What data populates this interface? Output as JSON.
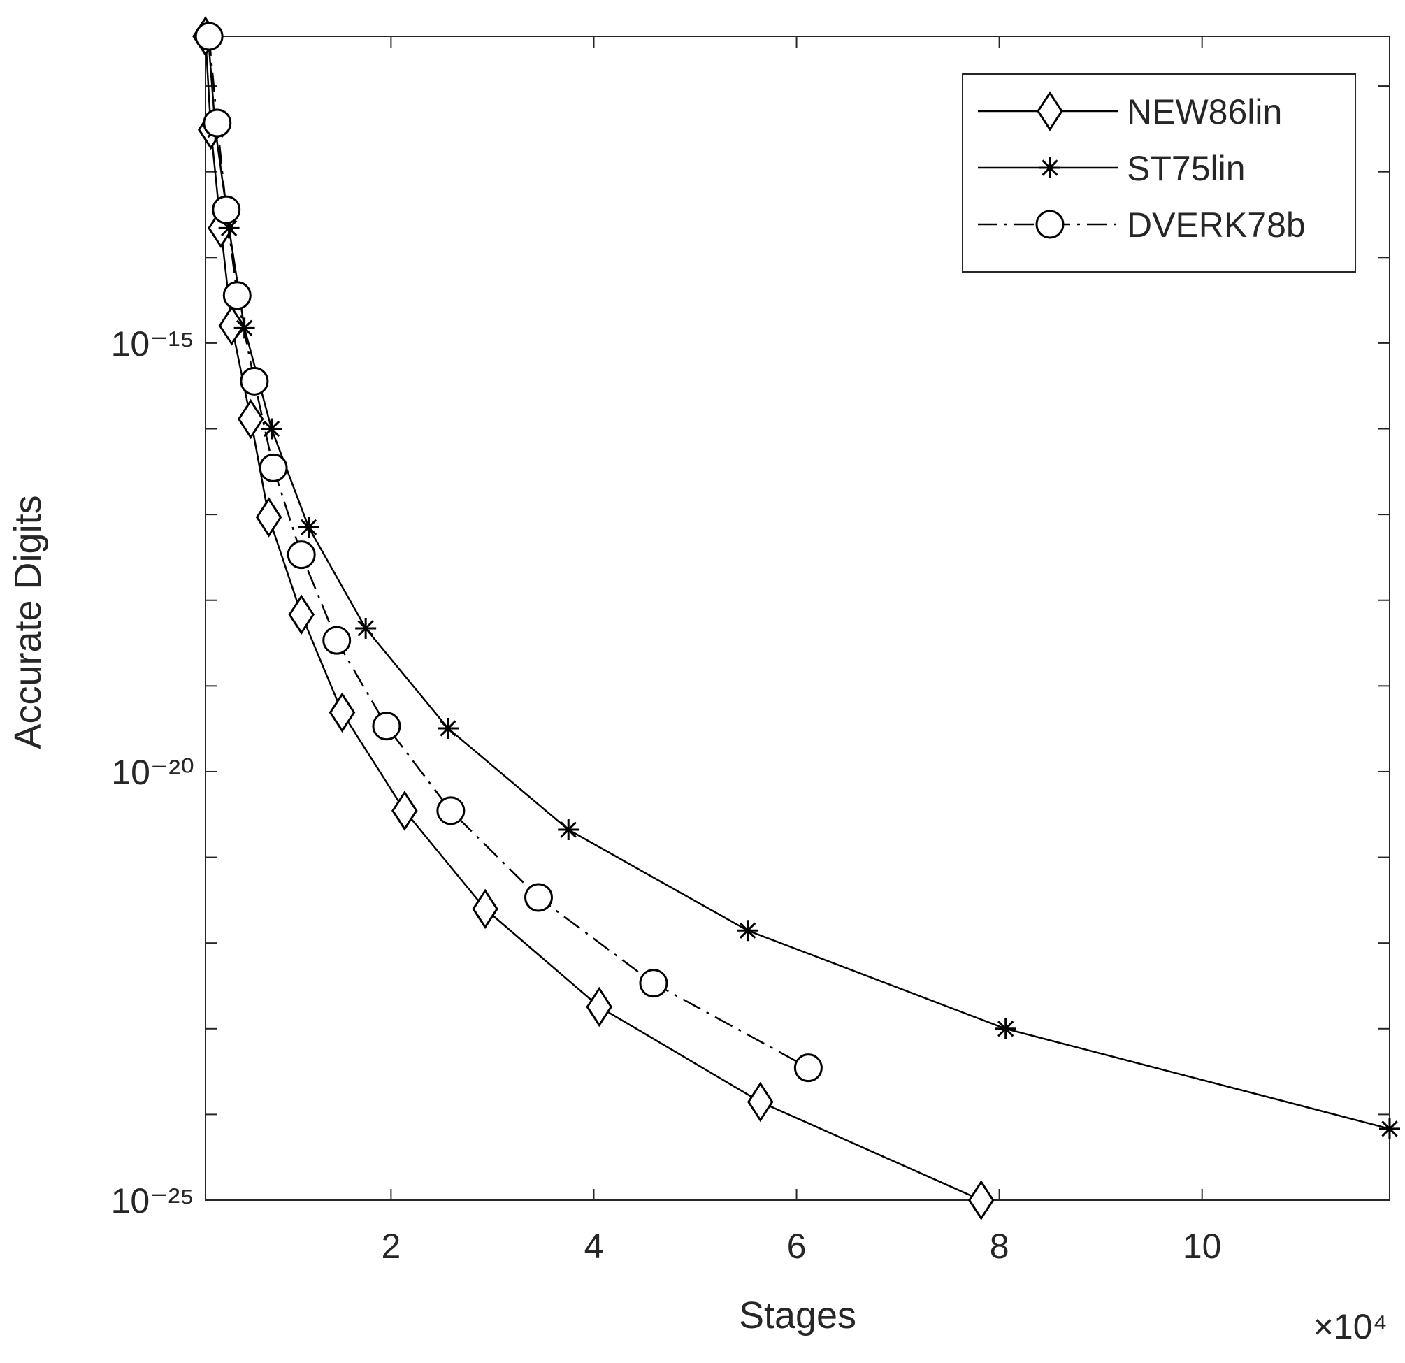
{
  "chart_data": {
    "type": "line",
    "xlabel": "Stages",
    "ylabel": "Accurate Digits",
    "x_multiplier": "×10⁴",
    "xlim": [
      1700,
      118500
    ],
    "ylim": [
      1e-25,
      3.8e-12
    ],
    "ylog": true,
    "xticks": [
      {
        "value": 20000,
        "label": "2"
      },
      {
        "value": 40000,
        "label": "4"
      },
      {
        "value": 60000,
        "label": "6"
      },
      {
        "value": 80000,
        "label": "8"
      },
      {
        "value": 100000,
        "label": "10"
      }
    ],
    "yticks": [
      {
        "value": 1e-15,
        "label": "10⁻¹⁵"
      },
      {
        "value": 1e-20,
        "label": "10⁻²⁰"
      },
      {
        "value": 1e-25,
        "label": "10⁻²⁵"
      }
    ],
    "y_decade_ticks": [
      1e-12,
      1e-13,
      1e-14,
      1e-16,
      1e-17,
      1e-18,
      1e-19,
      1e-21,
      1e-22,
      1e-23,
      1e-24
    ],
    "legend": "top-right",
    "series": [
      {
        "name": "NEW86lin",
        "color": "#000000",
        "marker": "diamond",
        "line": "solid",
        "x": [
          1696,
          2232,
          3214,
          4286,
          6161,
          7946,
          11161,
          15179,
          21339,
          29286,
          40536,
          56429,
          78214
        ],
        "values": [
          3.8e-12,
          3.1e-13,
          2.2e-14,
          1.6e-15,
          1.3e-16,
          9.3e-18,
          6.8e-19,
          4.9e-20,
          3.5e-21,
          2.5e-22,
          1.8e-23,
          1.4e-24,
          1e-25
        ]
      },
      {
        "name": "ST75lin",
        "color": "#000000",
        "marker": "star",
        "line": "solid",
        "x": [
          1964,
          2679,
          4018,
          5536,
          8214,
          11875,
          17500,
          25625,
          37500,
          55179,
          80625,
          118500
        ],
        "values": [
          3.8e-12,
          3.1e-13,
          2.2e-14,
          1.5e-15,
          1e-16,
          7.1e-18,
          4.7e-19,
          3.2e-20,
          2.1e-21,
          1.4e-22,
          1e-23,
          6.8e-25
        ]
      },
      {
        "name": "DVERK78b",
        "color": "#000000",
        "marker": "circle",
        "line": "dashdot",
        "x": [
          2054,
          2857,
          3750,
          4821,
          6518,
          8393,
          11161,
          14643,
          19554,
          25893,
          34554,
          45893,
          61161
        ],
        "values": [
          3.8e-12,
          3.7e-13,
          3.6e-14,
          3.6e-15,
          3.6e-16,
          3.5e-17,
          3.4e-18,
          3.4e-19,
          3.4e-20,
          3.5e-21,
          3.4e-22,
          3.4e-23,
          3.5e-24
        ]
      }
    ]
  }
}
